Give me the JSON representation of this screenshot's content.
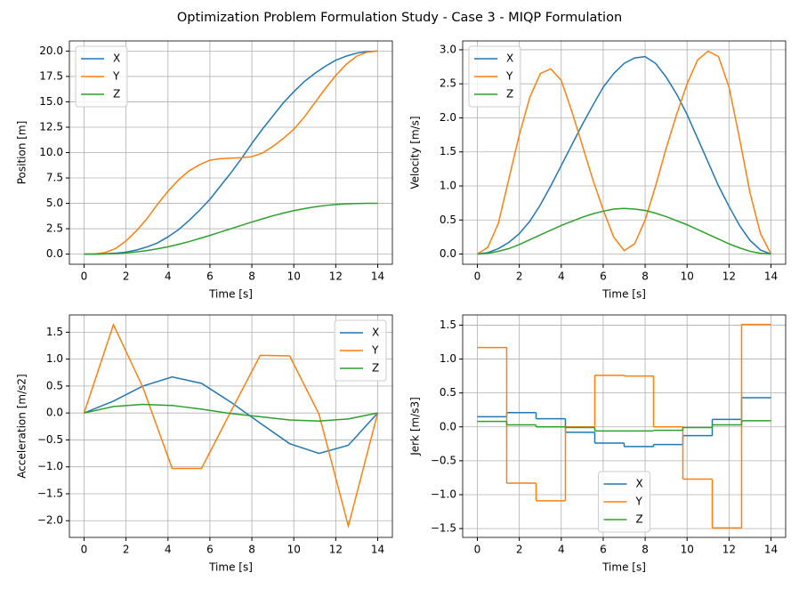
{
  "title": "Optimization Problem Formulation Study - Case 3 - MIQP Formulation",
  "chart_data": [
    {
      "type": "line",
      "xlabel": "Time [s]",
      "ylabel": "Position [m]",
      "x": [
        0,
        0.5,
        1,
        1.5,
        2,
        2.5,
        3,
        3.5,
        4,
        4.5,
        5,
        5.5,
        6,
        6.5,
        7,
        7.5,
        8,
        8.5,
        9,
        9.5,
        10,
        10.5,
        11,
        11.5,
        12,
        12.5,
        13,
        13.5,
        14
      ],
      "series": [
        {
          "name": "X",
          "color": "#1f77b4",
          "values": [
            0,
            0.01,
            0.03,
            0.09,
            0.2,
            0.4,
            0.7,
            1.1,
            1.7,
            2.4,
            3.3,
            4.3,
            5.4,
            6.7,
            8.0,
            9.4,
            10.9,
            12.3,
            13.6,
            14.9,
            16.0,
            17.0,
            17.8,
            18.5,
            19.1,
            19.5,
            19.8,
            19.95,
            20
          ]
        },
        {
          "name": "Y",
          "color": "#ff7f0e",
          "values": [
            0,
            0.02,
            0.15,
            0.55,
            1.3,
            2.3,
            3.5,
            4.9,
            6.2,
            7.3,
            8.2,
            8.8,
            9.25,
            9.4,
            9.45,
            9.5,
            9.6,
            9.95,
            10.6,
            11.4,
            12.3,
            13.5,
            14.9,
            16.3,
            17.6,
            18.7,
            19.5,
            19.9,
            20
          ]
        },
        {
          "name": "Z",
          "color": "#2ca02c",
          "values": [
            0,
            0.002,
            0.016,
            0.052,
            0.116,
            0.214,
            0.35,
            0.52,
            0.72,
            0.96,
            1.23,
            1.53,
            1.84,
            2.17,
            2.5,
            2.83,
            3.16,
            3.47,
            3.77,
            4.04,
            4.28,
            4.48,
            4.65,
            4.79,
            4.88,
            4.95,
            4.98,
            5.0,
            5.0
          ]
        }
      ],
      "xlim": [
        -0.7,
        14.7
      ],
      "xticks": [
        0,
        2,
        4,
        6,
        8,
        10,
        12,
        14
      ],
      "ylim": [
        -1,
        21
      ],
      "yticks": [
        {
          "value": 0,
          "label": "0.0"
        },
        2.5,
        {
          "value": 5,
          "label": "5.0"
        },
        7.5,
        {
          "value": 10,
          "label": "10.0"
        },
        12.5,
        {
          "value": 15,
          "label": "15.0"
        },
        17.5,
        {
          "value": 20,
          "label": "20.0"
        }
      ],
      "grid": true,
      "legend": "upper left"
    },
    {
      "type": "line",
      "xlabel": "Time [s]",
      "ylabel": "Velocity [m/s]",
      "x": [
        0,
        0.5,
        1,
        1.5,
        2,
        2.5,
        3,
        3.5,
        4,
        4.5,
        5,
        5.5,
        6,
        6.5,
        7,
        7.5,
        8,
        8.5,
        9,
        9.5,
        10,
        10.5,
        11,
        11.5,
        12,
        12.5,
        13,
        13.5,
        14
      ],
      "series": [
        {
          "name": "X",
          "color": "#1f77b4",
          "values": [
            0,
            0.02,
            0.08,
            0.17,
            0.3,
            0.48,
            0.72,
            1.0,
            1.3,
            1.6,
            1.9,
            2.18,
            2.45,
            2.65,
            2.8,
            2.88,
            2.9,
            2.8,
            2.6,
            2.35,
            2.05,
            1.7,
            1.35,
            1.0,
            0.7,
            0.42,
            0.2,
            0.06,
            0
          ]
        },
        {
          "name": "Y",
          "color": "#ff7f0e",
          "values": [
            0,
            0.1,
            0.45,
            1.1,
            1.75,
            2.3,
            2.65,
            2.72,
            2.55,
            2.1,
            1.6,
            1.1,
            0.65,
            0.25,
            0.05,
            0.15,
            0.5,
            1.0,
            1.55,
            2.05,
            2.5,
            2.85,
            2.98,
            2.9,
            2.45,
            1.7,
            0.9,
            0.3,
            0
          ]
        },
        {
          "name": "Z",
          "color": "#2ca02c",
          "values": [
            0,
            0.01,
            0.04,
            0.08,
            0.14,
            0.21,
            0.28,
            0.35,
            0.42,
            0.48,
            0.54,
            0.59,
            0.63,
            0.66,
            0.67,
            0.66,
            0.64,
            0.6,
            0.55,
            0.49,
            0.43,
            0.36,
            0.29,
            0.22,
            0.15,
            0.09,
            0.04,
            0.01,
            0
          ]
        }
      ],
      "xlim": [
        -0.7,
        14.7
      ],
      "xticks": [
        0,
        2,
        4,
        6,
        8,
        10,
        12,
        14
      ],
      "ylim": [
        -0.15,
        3.13
      ],
      "yticks": [
        {
          "value": 0,
          "label": "0.0"
        },
        0.5,
        {
          "value": 1,
          "label": "1.0"
        },
        1.5,
        {
          "value": 2,
          "label": "2.0"
        },
        2.5,
        {
          "value": 3,
          "label": "3.0"
        }
      ],
      "grid": true,
      "legend": "upper left"
    },
    {
      "type": "line",
      "xlabel": "Time [s]",
      "ylabel": "Acceleration [m/s2]",
      "x": [
        0,
        1.4,
        2.8,
        4.2,
        5.6,
        7,
        8.4,
        9.8,
        11.2,
        12.6,
        14
      ],
      "series": [
        {
          "name": "X",
          "color": "#1f77b4",
          "values": [
            0,
            0.22,
            0.5,
            0.67,
            0.55,
            0.2,
            -0.19,
            -0.57,
            -0.75,
            -0.6,
            0
          ]
        },
        {
          "name": "Y",
          "color": "#ff7f0e",
          "values": [
            0,
            1.64,
            0.48,
            -1.03,
            -1.03,
            0.03,
            1.07,
            1.06,
            -0.02,
            -2.1,
            0
          ]
        },
        {
          "name": "Z",
          "color": "#2ca02c",
          "values": [
            0,
            0.12,
            0.16,
            0.14,
            0.07,
            -0.01,
            -0.07,
            -0.13,
            -0.15,
            -0.11,
            0
          ]
        }
      ],
      "xlim": [
        -0.7,
        14.7
      ],
      "xticks": [
        0,
        2,
        4,
        6,
        8,
        10,
        12,
        14
      ],
      "ylim": [
        -2.31,
        1.82
      ],
      "yticks": [
        {
          "value": -2,
          "label": "−2.0"
        },
        {
          "value": -1.5,
          "label": "−1.5"
        },
        {
          "value": -1,
          "label": "−1.0"
        },
        {
          "value": -0.5,
          "label": "−0.5"
        },
        {
          "value": 0,
          "label": "0.0"
        },
        0.5,
        {
          "value": 1,
          "label": "1.0"
        },
        1.5
      ],
      "grid": true,
      "legend": "upper right"
    },
    {
      "type": "step",
      "xlabel": "Time [s]",
      "ylabel": "Jerk [m/s3]",
      "x": [
        0,
        1.4,
        2.8,
        4.2,
        5.6,
        7,
        8.4,
        9.8,
        11.2,
        12.6,
        14
      ],
      "series": [
        {
          "name": "X",
          "color": "#1f77b4",
          "values": [
            0.15,
            0.21,
            0.12,
            -0.08,
            -0.24,
            -0.29,
            -0.26,
            -0.13,
            0.11,
            0.43,
            0.43
          ]
        },
        {
          "name": "Y",
          "color": "#ff7f0e",
          "values": [
            1.17,
            -0.83,
            -1.09,
            0.0,
            0.76,
            0.75,
            0.0,
            -0.77,
            -1.49,
            1.51,
            1.51
          ]
        },
        {
          "name": "Z",
          "color": "#2ca02c",
          "values": [
            0.08,
            0.03,
            0.0,
            -0.01,
            -0.06,
            -0.06,
            -0.05,
            -0.01,
            0.03,
            0.09,
            0.09
          ]
        }
      ],
      "xlim": [
        -0.7,
        14.7
      ],
      "xticks": [
        0,
        2,
        4,
        6,
        8,
        10,
        12,
        14
      ],
      "ylim": [
        -1.63,
        1.65
      ],
      "yticks": [
        {
          "value": -1.5,
          "label": "−1.5"
        },
        {
          "value": -1,
          "label": "−1.0"
        },
        {
          "value": -0.5,
          "label": "−0.5"
        },
        {
          "value": 0,
          "label": "0.0"
        },
        0.5,
        {
          "value": 1,
          "label": "1.0"
        },
        1.5
      ],
      "grid": true,
      "legend": "lower center"
    }
  ]
}
